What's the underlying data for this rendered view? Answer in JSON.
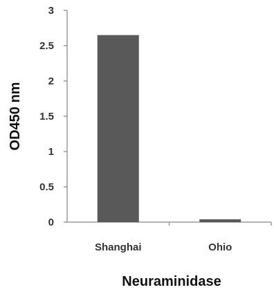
{
  "chart_data": {
    "type": "bar",
    "categories": [
      "Shanghai",
      "Ohio"
    ],
    "values": [
      2.65,
      0.04
    ],
    "xlabel": "Neuraminidase",
    "ylabel": "OD450 nm",
    "ylim": [
      0,
      3
    ],
    "yticks": [
      "0",
      "0.5",
      "1",
      "1.5",
      "2",
      "2.5",
      "3"
    ],
    "grid": false,
    "legend": "none",
    "bar_color": "#595959",
    "axis_color": "#9a9a9a"
  }
}
